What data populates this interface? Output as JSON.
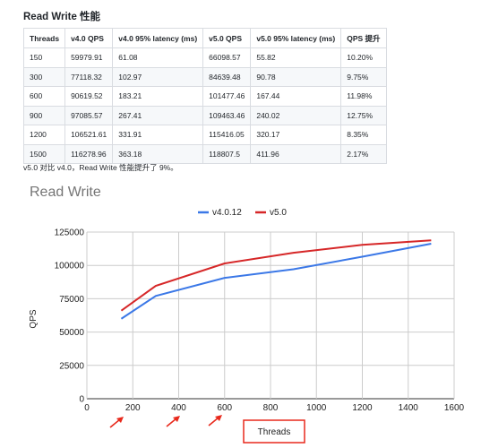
{
  "heading": "Read Write 性能",
  "table": {
    "headers": [
      "Threads",
      "v4.0 QPS",
      "v4.0 95% latency (ms)",
      "v5.0 QPS",
      "v5.0 95% latency (ms)",
      "QPS 提升"
    ],
    "rows": [
      [
        "150",
        "59979.91",
        "61.08",
        "66098.57",
        "55.82",
        "10.20%"
      ],
      [
        "300",
        "77118.32",
        "102.97",
        "84639.48",
        "90.78",
        "9.75%"
      ],
      [
        "600",
        "90619.52",
        "183.21",
        "101477.46",
        "167.44",
        "11.98%"
      ],
      [
        "900",
        "97085.57",
        "267.41",
        "109463.46",
        "240.02",
        "12.75%"
      ],
      [
        "1200",
        "106521.61",
        "331.91",
        "115416.05",
        "320.17",
        "8.35%"
      ],
      [
        "1500",
        "116278.96",
        "363.18",
        "118807.5",
        "411.96",
        "2.17%"
      ]
    ]
  },
  "note": "v5.0 对比 v4.0，Read Write 性能提升了 9%。",
  "colors": {
    "v4": "#3b78e7",
    "v5": "#d62728",
    "annotation": "#e8291c",
    "grid": "#cccccc"
  },
  "chart_data": {
    "type": "line",
    "title": "Read Write",
    "xlabel": "Threads",
    "ylabel": "QPS",
    "xlim": [
      0,
      1600
    ],
    "ylim": [
      0,
      125000
    ],
    "x_ticks": [
      "0",
      "200",
      "400",
      "600",
      "800",
      "1000",
      "1200",
      "1400",
      "1600"
    ],
    "y_ticks": [
      "0",
      "25000",
      "50000",
      "75000",
      "100000",
      "125000"
    ],
    "grid": true,
    "legend_position": "top",
    "x": [
      150,
      300,
      600,
      900,
      1200,
      1500
    ],
    "series": [
      {
        "name": "v4.0.12",
        "values": [
          59979.91,
          77118.32,
          90619.52,
          97085.57,
          106521.61,
          116278.96
        ]
      },
      {
        "name": "v5.0",
        "values": [
          66098.57,
          84639.48,
          101477.46,
          109463.46,
          115416.05,
          118807.5
        ]
      }
    ]
  }
}
